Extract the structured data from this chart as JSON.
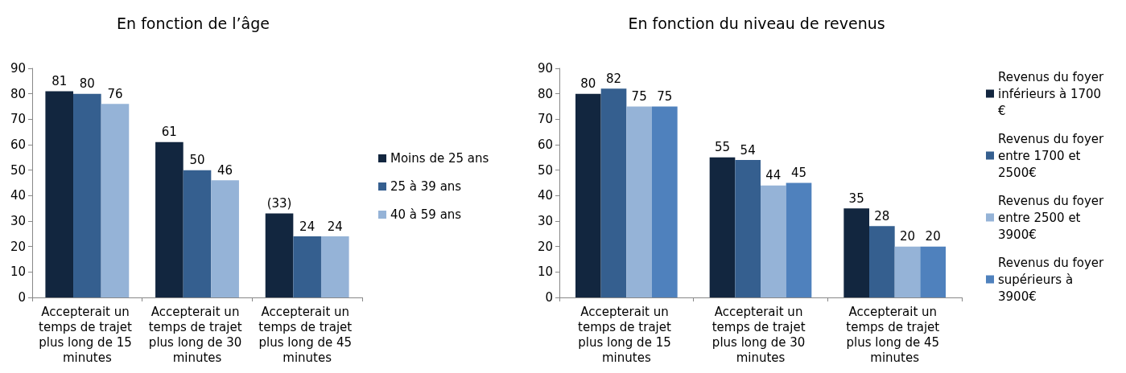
{
  "chart_data": [
    {
      "type": "bar",
      "title": "En fonction de l’âge",
      "categories": [
        "Accepterait un temps de trajet plus long de 15 minutes",
        "Accepterait un temps de trajet plus long de 30 minutes",
        "Accepterait un temps de trajet plus long de 45 minutes"
      ],
      "ylim": [
        0,
        90
      ],
      "yticks": [
        0,
        10,
        20,
        30,
        40,
        50,
        60,
        70,
        80,
        90
      ],
      "legend": "right",
      "series": [
        {
          "name": "Moins de 25 ans",
          "color": "#12263f",
          "values": [
            81,
            61,
            33
          ],
          "value_labels": [
            "81",
            "61",
            "(33)"
          ]
        },
        {
          "name": "25 à 39 ans",
          "color": "#355f8f",
          "values": [
            80,
            50,
            24
          ],
          "value_labels": [
            "80",
            "50",
            "24"
          ]
        },
        {
          "name": "40 à 59 ans",
          "color": "#95b3d7",
          "values": [
            76,
            46,
            24
          ],
          "value_labels": [
            "76",
            "46",
            "24"
          ]
        }
      ]
    },
    {
      "type": "bar",
      "title": "En fonction du niveau de revenus",
      "categories": [
        "Accepterait un temps de trajet plus long de 15 minutes",
        "Accepterait un temps de trajet plus long de 30 minutes",
        "Accepterait un temps de trajet plus long de 45 minutes"
      ],
      "ylim": [
        0,
        90
      ],
      "yticks": [
        0,
        10,
        20,
        30,
        40,
        50,
        60,
        70,
        80,
        90
      ],
      "legend": "right",
      "data_labels": true,
      "series": [
        {
          "name": "Revenus du foyer inférieurs à 1700€",
          "color": "#12263f",
          "values": [
            80,
            55,
            35
          ]
        },
        {
          "name": "Revenus du foyer entre 1700 et 2500€",
          "color": "#355f8f",
          "values": [
            82,
            54,
            28
          ]
        },
        {
          "name": "Revenus du foyer entre 2500 et 3900€",
          "color": "#95b3d7",
          "values": [
            75,
            44,
            20
          ]
        },
        {
          "name": "Revenus du foyer supérieurs à 3900€",
          "color": "#4f81bd",
          "values": [
            75,
            45,
            20
          ]
        }
      ]
    }
  ]
}
